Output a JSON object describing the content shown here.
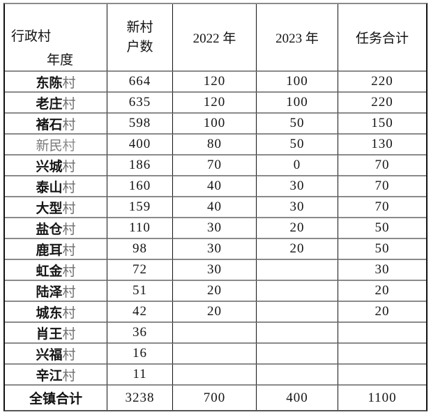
{
  "table": {
    "title": "village-task-allocation-table",
    "header": {
      "corner_row_label": "行政村",
      "corner_col_label": "年度",
      "households_line1": "新村",
      "households_line2": "户数",
      "year_2022": "2022 年",
      "year_2023": "2023 年",
      "task_total": "任务合计"
    },
    "rows": [
      {
        "name_main": "东陈",
        "name_suffix": "村",
        "households": "664",
        "y2022": "120",
        "y2023": "100",
        "total": "220"
      },
      {
        "name_main": "老庄",
        "name_suffix": "村",
        "households": "635",
        "y2022": "120",
        "y2023": "100",
        "total": "220"
      },
      {
        "name_main": "褚石",
        "name_suffix": "村",
        "households": "598",
        "y2022": "100",
        "y2023": "50",
        "total": "150"
      },
      {
        "name_main": "新民",
        "name_suffix": "村",
        "households": "400",
        "y2022": "80",
        "y2023": "50",
        "total": "130"
      },
      {
        "name_main": "兴城",
        "name_suffix": "村",
        "households": "186",
        "y2022": "70",
        "y2023": "0",
        "total": "70"
      },
      {
        "name_main": "泰山",
        "name_suffix": "村",
        "households": "160",
        "y2022": "40",
        "y2023": "30",
        "total": "70"
      },
      {
        "name_main": "大型",
        "name_suffix": "村",
        "households": "159",
        "y2022": "40",
        "y2023": "30",
        "total": "70"
      },
      {
        "name_main": "盐仓",
        "name_suffix": "村",
        "households": "110",
        "y2022": "30",
        "y2023": "20",
        "total": "50"
      },
      {
        "name_main": "鹿耳",
        "name_suffix": "村",
        "households": "98",
        "y2022": "30",
        "y2023": "20",
        "total": "50"
      },
      {
        "name_main": "虹金",
        "name_suffix": "村",
        "households": "72",
        "y2022": "30",
        "y2023": "",
        "total": "30"
      },
      {
        "name_main": "陆泽",
        "name_suffix": "村",
        "households": "51",
        "y2022": "20",
        "y2023": "",
        "total": "20"
      },
      {
        "name_main": "城东",
        "name_suffix": "村",
        "households": "42",
        "y2022": "20",
        "y2023": "",
        "total": "20"
      },
      {
        "name_main": "肖王",
        "name_suffix": "村",
        "households": "36",
        "y2022": "",
        "y2023": "",
        "total": ""
      },
      {
        "name_main": "兴福",
        "name_suffix": "村",
        "households": "16",
        "y2022": "",
        "y2023": "",
        "total": ""
      },
      {
        "name_main": "辛江",
        "name_suffix": "村",
        "households": "11",
        "y2022": "",
        "y2023": "",
        "total": ""
      }
    ],
    "total_row": {
      "label": "全镇合计",
      "households": "3238",
      "y2022": "700",
      "y2023": "400",
      "total": "1100"
    }
  },
  "chart_data": {
    "type": "table",
    "columns": [
      "行政村",
      "新村户数",
      "2022 年",
      "2023 年",
      "任务合计"
    ],
    "rows": [
      [
        "东陈村",
        664,
        120,
        100,
        220
      ],
      [
        "老庄村",
        635,
        120,
        100,
        220
      ],
      [
        "褚石村",
        598,
        100,
        50,
        150
      ],
      [
        "新民村",
        400,
        80,
        50,
        130
      ],
      [
        "兴城村",
        186,
        70,
        0,
        70
      ],
      [
        "泰山村",
        160,
        40,
        30,
        70
      ],
      [
        "大型村",
        159,
        40,
        30,
        70
      ],
      [
        "盐仓村",
        110,
        30,
        20,
        50
      ],
      [
        "鹿耳村",
        98,
        30,
        20,
        50
      ],
      [
        "虹金村",
        72,
        30,
        null,
        30
      ],
      [
        "陆泽村",
        51,
        20,
        null,
        20
      ],
      [
        "城东村",
        42,
        20,
        null,
        20
      ],
      [
        "肖王村",
        36,
        null,
        null,
        null
      ],
      [
        "兴福村",
        16,
        null,
        null,
        null
      ],
      [
        "辛江村",
        11,
        null,
        null,
        null
      ],
      [
        "全镇合计",
        3238,
        700,
        400,
        1100
      ]
    ]
  },
  "colors": {
    "border_vertical": "#111111",
    "border_horizontal": "#8a8a8a",
    "text_primary": "#141414",
    "text_muted": "#7a7a7a",
    "background": "#ffffff"
  }
}
